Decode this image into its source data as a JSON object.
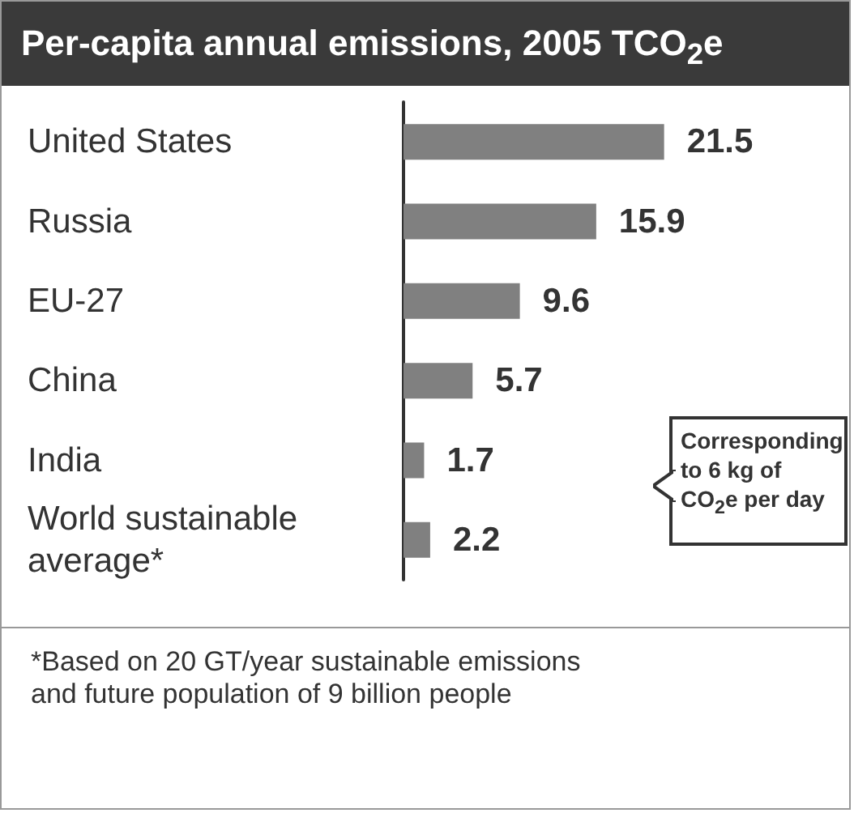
{
  "chart_data": {
    "type": "bar",
    "orientation": "horizontal",
    "title": "Per-capita annual emissions, 2005 TCO$_{2}$e",
    "categories": [
      "United States",
      "Russia",
      "EU-27",
      "China",
      "India",
      "World sustainable average*"
    ],
    "values": [
      21.5,
      15.9,
      9.6,
      5.7,
      1.7,
      2.2
    ],
    "color": "#808080",
    "data_labels": true,
    "annotations": [
      "Corresponding to 6 kg of CO$_{2}$e per day",
      "*Based on 20 GT/year sustainable emissions and future population of 9 billion people"
    ]
  }
}
